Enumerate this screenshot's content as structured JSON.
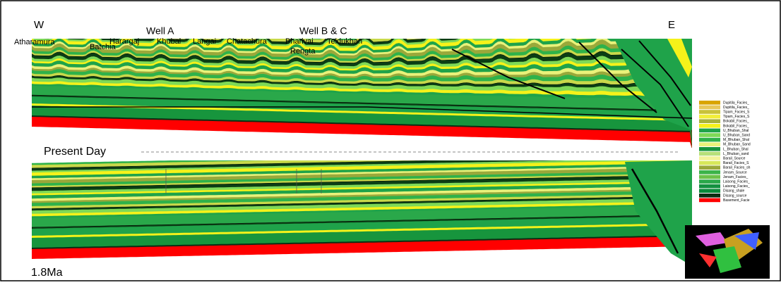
{
  "header": {
    "west": "W",
    "east": "E"
  },
  "wells": [
    "Well A",
    "Well B & C"
  ],
  "locations": [
    "Atharamura",
    "Batchia",
    "Harargaj",
    "Khubal",
    "Langai",
    "Chatachura",
    "Bharivai",
    "Rengta",
    "Teidukhan"
  ],
  "panels": [
    {
      "label": "Present Day"
    },
    {
      "label": "1.8Ma"
    }
  ],
  "legend": [
    {
      "label": "Dupitila_Facies_",
      "color": "#d9a400"
    },
    {
      "label": "Dupitila_Facies_",
      "color": "#e8c85a"
    },
    {
      "label": "Tipam_Facies_S",
      "color": "#c9c23a"
    },
    {
      "label": "Tipam_Facies_S",
      "color": "#f2ee3a"
    },
    {
      "label": "Bokabil_Facies_",
      "color": "#a8b23a"
    },
    {
      "label": "Bokabil_Facies_",
      "color": "#f5f21a"
    },
    {
      "label": "U_Bhuban_Shal",
      "color": "#1fa34a"
    },
    {
      "label": "U_Bhuban_Sand",
      "color": "#7ed957"
    },
    {
      "label": "M_Bhuban_Shal",
      "color": "#2fb24a"
    },
    {
      "label": "M_Bhuban_Sand",
      "color": "#e9f27a"
    },
    {
      "label": "L_Bhuban_Shal",
      "color": "#17953d"
    },
    {
      "label": "L_Bhuban_sand",
      "color": "#b7e07a"
    },
    {
      "label": "Barail_Source",
      "color": "#f3f39a"
    },
    {
      "label": "Barail_Facies_S",
      "color": "#d8e85a"
    },
    {
      "label": "Barail_Facies_sh",
      "color": "#9aa83a"
    },
    {
      "label": "Jenam_Source",
      "color": "#3cb44a"
    },
    {
      "label": "Jenam_Facies_",
      "color": "#6cc24a"
    },
    {
      "label": "Laisong_Facies_",
      "color": "#2aa84a"
    },
    {
      "label": "Laisong_Facies_",
      "color": "#139040"
    },
    {
      "label": "Disang_shale",
      "color": "#0a8a3a"
    },
    {
      "label": "Disang_source",
      "color": "#0b2d12"
    },
    {
      "label": "Basement_Facie",
      "color": "#ff0000"
    }
  ]
}
